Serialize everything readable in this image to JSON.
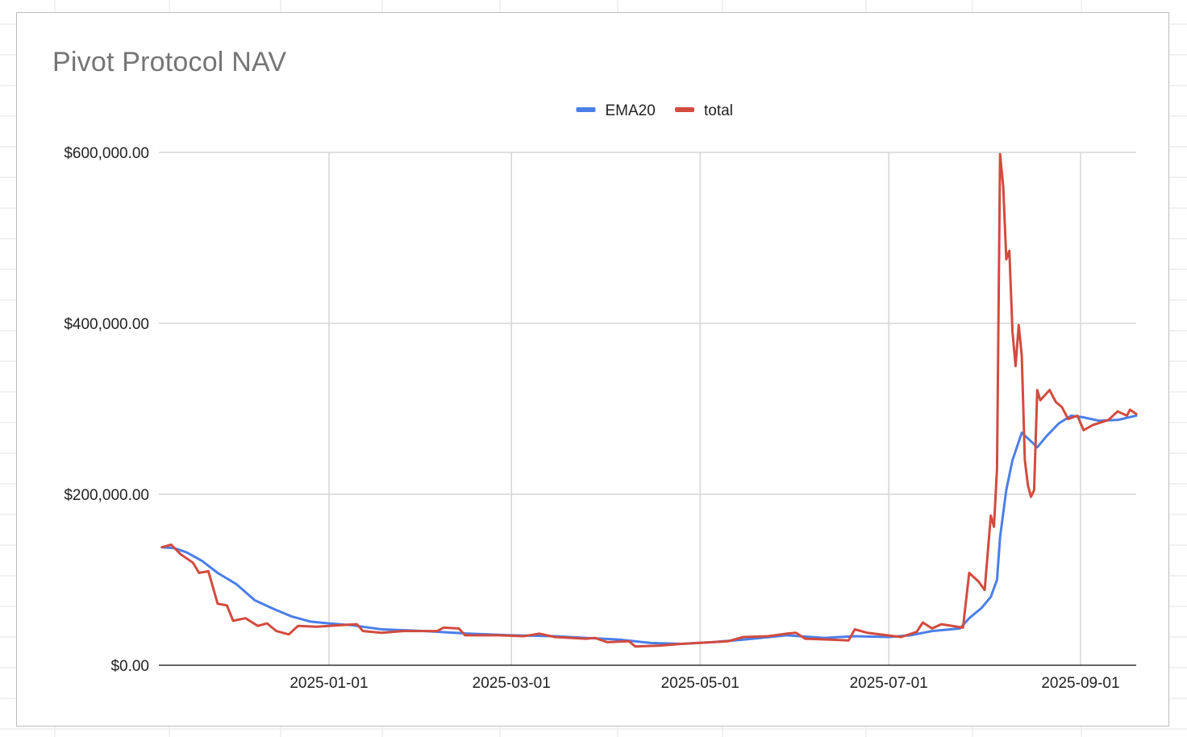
{
  "chart_data": {
    "type": "line",
    "title": "Pivot Protocol NAV",
    "xlabel": "",
    "ylabel": "",
    "x_range": [
      "2024-11-08",
      "2025-09-19"
    ],
    "ylim": [
      0,
      600000
    ],
    "y_ticks": [
      0,
      200000,
      400000,
      600000
    ],
    "y_tick_labels": [
      "$0.00",
      "$200,000.00",
      "$400,000.00",
      "$600,000.00"
    ],
    "x_ticks": [
      "2025-01-01",
      "2025-03-01",
      "2025-05-01",
      "2025-07-01",
      "2025-09-01"
    ],
    "x_tick_labels": [
      "2025-01-01",
      "2025-03-01",
      "2025-05-01",
      "2025-07-01",
      "2025-09-01"
    ],
    "grid": true,
    "legend_position": "top-center",
    "series": [
      {
        "name": "EMA20",
        "color": "#4a7fe8",
        "points": [
          [
            "2024-11-08",
            138000
          ],
          [
            "2024-11-12",
            137000
          ],
          [
            "2024-11-16",
            132000
          ],
          [
            "2024-11-21",
            122000
          ],
          [
            "2024-11-26",
            108000
          ],
          [
            "2024-12-02",
            95000
          ],
          [
            "2024-12-08",
            76000
          ],
          [
            "2024-12-14",
            66000
          ],
          [
            "2024-12-20",
            57000
          ],
          [
            "2024-12-26",
            51000
          ],
          [
            "2025-01-01",
            49000
          ],
          [
            "2025-01-08",
            47000
          ],
          [
            "2025-01-18",
            42000
          ],
          [
            "2025-02-01",
            40000
          ],
          [
            "2025-02-15",
            37000
          ],
          [
            "2025-03-01",
            35000
          ],
          [
            "2025-03-15",
            34000
          ],
          [
            "2025-03-25",
            32000
          ],
          [
            "2025-04-05",
            30000
          ],
          [
            "2025-04-15",
            26000
          ],
          [
            "2025-04-25",
            25000
          ],
          [
            "2025-05-05",
            27000
          ],
          [
            "2025-05-15",
            30000
          ],
          [
            "2025-05-29",
            35000
          ],
          [
            "2025-06-10",
            32000
          ],
          [
            "2025-06-20",
            34000
          ],
          [
            "2025-07-01",
            33000
          ],
          [
            "2025-07-08",
            35000
          ],
          [
            "2025-07-15",
            40000
          ],
          [
            "2025-07-24",
            43000
          ],
          [
            "2025-07-27",
            55000
          ],
          [
            "2025-07-31",
            67000
          ],
          [
            "2025-08-03",
            80000
          ],
          [
            "2025-08-05",
            100000
          ],
          [
            "2025-08-06",
            150000
          ],
          [
            "2025-08-08",
            205000
          ],
          [
            "2025-08-10",
            240000
          ],
          [
            "2025-08-13",
            272000
          ],
          [
            "2025-08-16",
            262000
          ],
          [
            "2025-08-18",
            255000
          ],
          [
            "2025-08-21",
            268000
          ],
          [
            "2025-08-25",
            283000
          ],
          [
            "2025-08-29",
            292000
          ],
          [
            "2025-09-02",
            290000
          ],
          [
            "2025-09-07",
            286000
          ],
          [
            "2025-09-13",
            287000
          ],
          [
            "2025-09-19",
            292000
          ]
        ]
      },
      {
        "name": "total",
        "color": "#d24b3e",
        "points": [
          [
            "2024-11-08",
            138000
          ],
          [
            "2024-11-11",
            141000
          ],
          [
            "2024-11-14",
            130000
          ],
          [
            "2024-11-18",
            120000
          ],
          [
            "2024-11-20",
            108000
          ],
          [
            "2024-11-23",
            110000
          ],
          [
            "2024-11-26",
            72000
          ],
          [
            "2024-11-29",
            70000
          ],
          [
            "2024-12-01",
            52000
          ],
          [
            "2024-12-05",
            55000
          ],
          [
            "2024-12-09",
            46000
          ],
          [
            "2024-12-12",
            49000
          ],
          [
            "2024-12-15",
            40000
          ],
          [
            "2024-12-19",
            36000
          ],
          [
            "2024-12-22",
            46000
          ],
          [
            "2024-12-28",
            45000
          ],
          [
            "2025-01-05",
            47000
          ],
          [
            "2025-01-10",
            48000
          ],
          [
            "2025-01-12",
            40000
          ],
          [
            "2025-01-18",
            38000
          ],
          [
            "2025-01-25",
            40000
          ],
          [
            "2025-02-05",
            40000
          ],
          [
            "2025-02-07",
            44000
          ],
          [
            "2025-02-12",
            43000
          ],
          [
            "2025-02-14",
            35000
          ],
          [
            "2025-02-25",
            35000
          ],
          [
            "2025-03-05",
            34000
          ],
          [
            "2025-03-10",
            37000
          ],
          [
            "2025-03-15",
            33000
          ],
          [
            "2025-03-25",
            31000
          ],
          [
            "2025-03-28",
            32000
          ],
          [
            "2025-04-01",
            27000
          ],
          [
            "2025-04-08",
            28000
          ],
          [
            "2025-04-10",
            22000
          ],
          [
            "2025-04-18",
            23000
          ],
          [
            "2025-04-25",
            25000
          ],
          [
            "2025-05-10",
            28000
          ],
          [
            "2025-05-15",
            33000
          ],
          [
            "2025-05-23",
            34000
          ],
          [
            "2025-05-29",
            37000
          ],
          [
            "2025-06-01",
            38000
          ],
          [
            "2025-06-04",
            31000
          ],
          [
            "2025-06-12",
            30000
          ],
          [
            "2025-06-18",
            29000
          ],
          [
            "2025-06-20",
            42000
          ],
          [
            "2025-06-24",
            38000
          ],
          [
            "2025-07-05",
            33000
          ],
          [
            "2025-07-10",
            39000
          ],
          [
            "2025-07-12",
            50000
          ],
          [
            "2025-07-15",
            43000
          ],
          [
            "2025-07-18",
            48000
          ],
          [
            "2025-07-25",
            44000
          ],
          [
            "2025-07-27",
            108000
          ],
          [
            "2025-07-30",
            98000
          ],
          [
            "2025-08-01",
            88000
          ],
          [
            "2025-08-03",
            175000
          ],
          [
            "2025-08-04",
            162000
          ],
          [
            "2025-08-05",
            230000
          ],
          [
            "2025-08-06",
            598000
          ],
          [
            "2025-08-07",
            560000
          ],
          [
            "2025-08-08",
            475000
          ],
          [
            "2025-08-09",
            485000
          ],
          [
            "2025-08-10",
            390000
          ],
          [
            "2025-08-11",
            350000
          ],
          [
            "2025-08-12",
            398000
          ],
          [
            "2025-08-13",
            362000
          ],
          [
            "2025-08-14",
            240000
          ],
          [
            "2025-08-15",
            210000
          ],
          [
            "2025-08-16",
            197000
          ],
          [
            "2025-08-17",
            205000
          ],
          [
            "2025-08-18",
            322000
          ],
          [
            "2025-08-19",
            310000
          ],
          [
            "2025-08-21",
            318000
          ],
          [
            "2025-08-22",
            322000
          ],
          [
            "2025-08-24",
            308000
          ],
          [
            "2025-08-26",
            302000
          ],
          [
            "2025-08-28",
            288000
          ],
          [
            "2025-08-31",
            292000
          ],
          [
            "2025-09-02",
            275000
          ],
          [
            "2025-09-05",
            281000
          ],
          [
            "2025-09-10",
            287000
          ],
          [
            "2025-09-13",
            297000
          ],
          [
            "2025-09-16",
            292000
          ],
          [
            "2025-09-17",
            299000
          ],
          [
            "2025-09-19",
            294000
          ]
        ]
      }
    ]
  }
}
